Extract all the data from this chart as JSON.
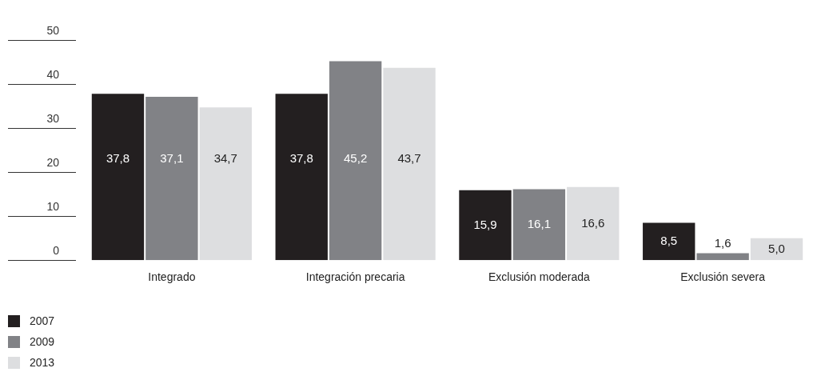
{
  "chart_data": {
    "type": "bar",
    "categories": [
      "Integrado",
      "Integración precaria",
      "Exclusión moderada",
      "Exclusión severa"
    ],
    "series": [
      {
        "name": "2007",
        "color": "#231f20",
        "values": [
          37.8,
          37.8,
          15.9,
          8.5
        ],
        "value_labels": [
          "37,8",
          "37,8",
          "15,9",
          "8,5"
        ]
      },
      {
        "name": "2009",
        "color": "#818286",
        "values": [
          37.1,
          45.2,
          16.1,
          1.6
        ],
        "value_labels": [
          "37,1",
          "45,2",
          "16,1",
          "1,6"
        ]
      },
      {
        "name": "2013",
        "color": "#dddee0",
        "values": [
          34.7,
          43.7,
          16.6,
          5.0
        ],
        "value_labels": [
          "34,7",
          "43,7",
          "16,6",
          "5,0"
        ]
      }
    ],
    "ylim": [
      0,
      50
    ],
    "yticks": [
      0,
      10,
      20,
      30,
      40,
      50
    ],
    "grid": false,
    "legend": "bottom left"
  }
}
